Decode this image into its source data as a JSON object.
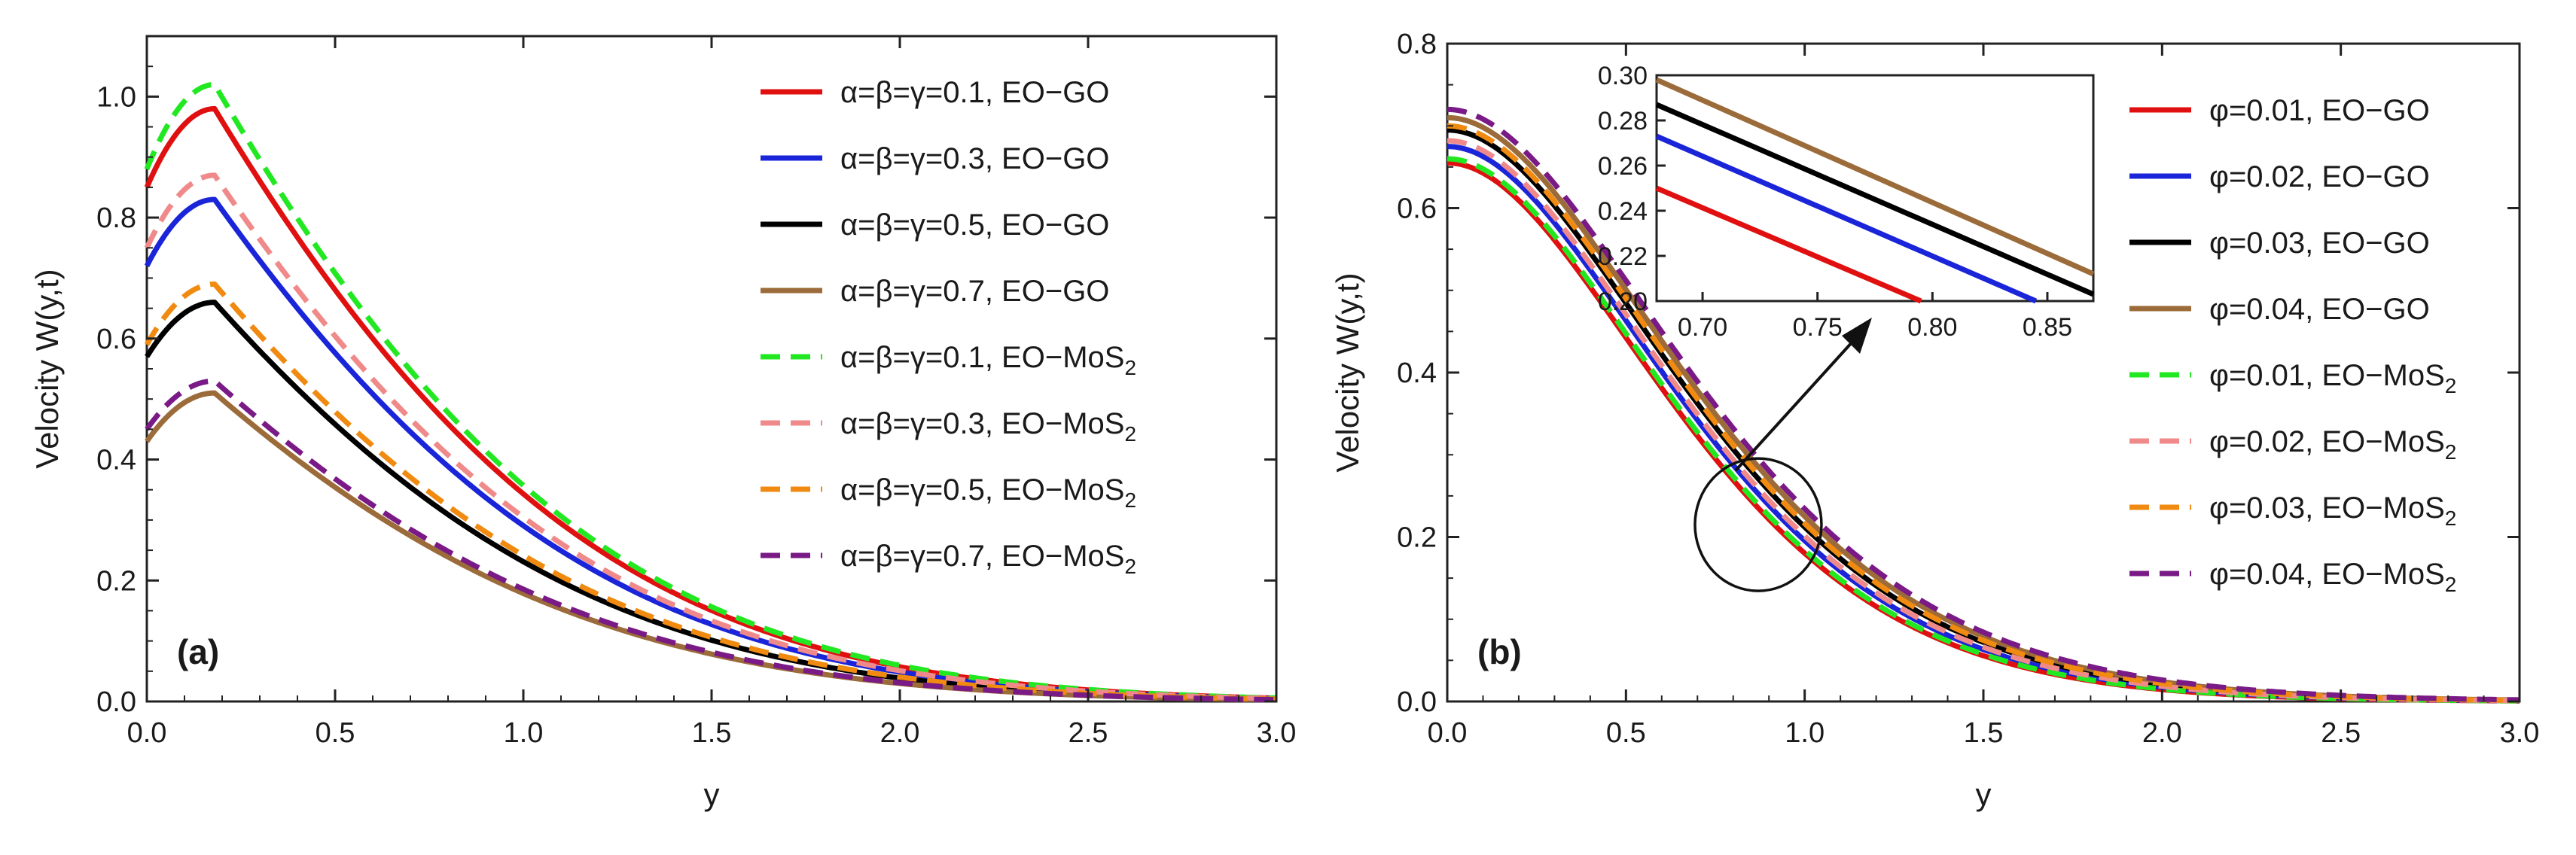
{
  "figure": {
    "panels": [
      "(a)",
      "(b)"
    ]
  },
  "chart_data": [
    {
      "type": "line",
      "panel": "(a)",
      "xlabel": "y",
      "ylabel": "Velocity W(y,t)",
      "xlim": [
        0,
        3
      ],
      "ylim": [
        0,
        1.1
      ],
      "xticks": [
        "0.0",
        "0.5",
        "1.0",
        "1.5",
        "2.0",
        "2.5",
        "3.0"
      ],
      "yticks": [
        "0.0",
        "0.2",
        "0.4",
        "0.6",
        "0.8",
        "1.0"
      ],
      "legend_position": "top-right",
      "series": [
        {
          "name": "α=β=γ=0.1, EO−GO",
          "color": "#e01010",
          "dash": "solid",
          "w0": 0.85,
          "peak": 0.98
        },
        {
          "name": "α=β=γ=0.3, EO−GO",
          "color": "#1a24d8",
          "dash": "solid",
          "w0": 0.72,
          "peak": 0.83
        },
        {
          "name": "α=β=γ=0.5, EO−GO",
          "color": "#000000",
          "dash": "solid",
          "w0": 0.57,
          "peak": 0.66
        },
        {
          "name": "α=β=γ=0.7, EO−GO",
          "color": "#9b6b3a",
          "dash": "solid",
          "w0": 0.43,
          "peak": 0.51
        },
        {
          "name": "α=β=γ=0.1, EO−MoS",
          "sub": "2",
          "color": "#22e822",
          "dash": "dashed",
          "w0": 0.88,
          "peak": 1.02
        },
        {
          "name": "α=β=γ=0.3, EO−MoS",
          "sub": "2",
          "color": "#f08a8a",
          "dash": "dashed",
          "w0": 0.75,
          "peak": 0.87
        },
        {
          "name": "α=β=γ=0.5, EO−MoS",
          "sub": "2",
          "color": "#f08a10",
          "dash": "dashed",
          "w0": 0.59,
          "peak": 0.69
        },
        {
          "name": "α=β=γ=0.7, EO−MoS",
          "sub": "2",
          "color": "#7a1a86",
          "dash": "dashed",
          "w0": 0.45,
          "peak": 0.53
        }
      ]
    },
    {
      "type": "line",
      "panel": "(b)",
      "xlabel": "y",
      "ylabel": "Velocity W(y,t)",
      "xlim": [
        0,
        3
      ],
      "ylim": [
        0,
        0.8
      ],
      "xticks": [
        "0.0",
        "0.5",
        "1.0",
        "1.5",
        "2.0",
        "2.5",
        "3.0"
      ],
      "yticks": [
        "0.0",
        "0.2",
        "0.4",
        "0.6",
        "0.8"
      ],
      "legend_position": "top-right",
      "annotation": "circle near y≈0.9 with arrow to zoomed inset",
      "inset": {
        "xlim": [
          0.68,
          0.87
        ],
        "ylim": [
          0.2,
          0.3
        ],
        "xticks": [
          "0.70",
          "0.75",
          "0.80",
          "0.85"
        ],
        "yticks": [
          "0.20",
          "0.22",
          "0.24",
          "0.26",
          "0.28",
          "0.30"
        ],
        "lines": [
          {
            "color": "#e01010",
            "x0": 0.68,
            "y0": 0.25,
            "x1": 0.795,
            "y1": 0.2
          },
          {
            "color": "#1a24d8",
            "x0": 0.68,
            "y0": 0.273,
            "x1": 0.845,
            "y1": 0.2
          },
          {
            "color": "#000000",
            "x0": 0.68,
            "y0": 0.287,
            "x1": 0.87,
            "y1": 0.203
          },
          {
            "color": "#9b6b3a",
            "x0": 0.68,
            "y0": 0.298,
            "x1": 0.87,
            "y1": 0.212
          }
        ]
      },
      "series": [
        {
          "name": "φ=0.01, EO−GO",
          "color": "#e01010",
          "dash": "solid",
          "w0": 0.655
        },
        {
          "name": "φ=0.02, EO−GO",
          "color": "#1a24d8",
          "dash": "solid",
          "w0": 0.675
        },
        {
          "name": "φ=0.03, EO−GO",
          "color": "#000000",
          "dash": "solid",
          "w0": 0.695
        },
        {
          "name": "φ=0.04, EO−GO",
          "color": "#9b6b3a",
          "dash": "solid",
          "w0": 0.71
        },
        {
          "name": "φ=0.01, EO−MoS",
          "sub": "2",
          "color": "#22e822",
          "dash": "dashed",
          "w0": 0.66
        },
        {
          "name": "φ=0.02, EO−MoS",
          "sub": "2",
          "color": "#f08a8a",
          "dash": "dashed",
          "w0": 0.682
        },
        {
          "name": "φ=0.03, EO−MoS",
          "sub": "2",
          "color": "#f08a10",
          "dash": "dashed",
          "w0": 0.7
        },
        {
          "name": "φ=0.04, EO−MoS",
          "sub": "2",
          "color": "#7a1a86",
          "dash": "dashed",
          "w0": 0.72
        }
      ]
    }
  ]
}
